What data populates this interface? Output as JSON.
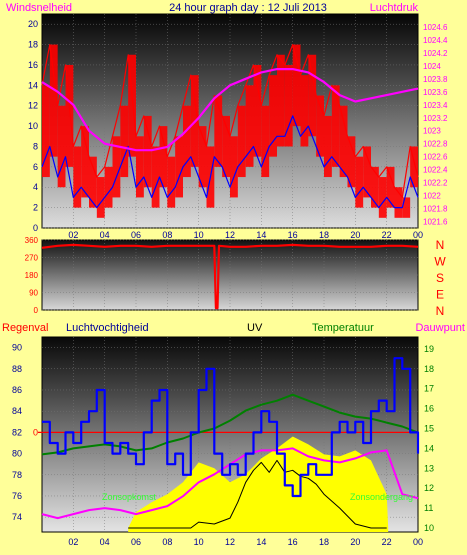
{
  "title": "24 hour graph day : 12 Juli 2013",
  "colors": {
    "background": "#ffff99",
    "wind": "#ff0000",
    "gust": "#0000ff",
    "pressure": "#ff00ff",
    "direction": "#ff0000",
    "rain": "#ff0000",
    "humidity": "#0000ff",
    "uv": "#000000",
    "solar": "#ffff00",
    "temperature": "#008000",
    "dewpoint": "#ff00ff",
    "label_green": "#008000",
    "label_blue": "#000099"
  },
  "chart_data": [
    {
      "type": "line",
      "title": "24 hour graph day : 12 Juli 2013",
      "left_axis_label": "Windsnelheid",
      "right_axis_label": "Luchtdruk",
      "x_ticks": [
        "02",
        "04",
        "06",
        "08",
        "10",
        "12",
        "14",
        "16",
        "18",
        "20",
        "22",
        "00"
      ],
      "left_ylim": [
        0,
        21
      ],
      "left_ticks": [
        "0",
        "2",
        "4",
        "6",
        "8",
        "10",
        "12",
        "14",
        "16",
        "18",
        "20"
      ],
      "right_ylim": [
        1021.5,
        1024.8
      ],
      "right_ticks": [
        "1021.6",
        "1021.8",
        "1022",
        "1022.2",
        "1022.4",
        "1022.6",
        "1022.8",
        "1023",
        "1023.2",
        "1023.4",
        "1023.6",
        "1023.8",
        "1024",
        "1024.2",
        "1024.4",
        "1024.6"
      ],
      "series": [
        {
          "key": "wind",
          "hours": [
            0,
            0.5,
            1,
            1.5,
            2,
            2.5,
            3,
            3.5,
            4,
            4.5,
            5,
            5.5,
            6,
            6.5,
            7,
            7.5,
            8,
            8.5,
            9,
            9.5,
            10,
            10.5,
            11,
            11.5,
            12,
            12.5,
            13,
            13.5,
            14,
            14.5,
            15,
            15.5,
            16,
            16.5,
            17,
            17.5,
            18,
            18.5,
            19,
            19.5,
            20,
            20.5,
            21,
            21.5,
            22,
            22.5,
            23,
            23.5,
            24
          ],
          "values": [
            14,
            18,
            12,
            16,
            8,
            10,
            7,
            5,
            6,
            9,
            12,
            17,
            9,
            11,
            8,
            10,
            7,
            9,
            12,
            15,
            10,
            8,
            13,
            11,
            9,
            12,
            14,
            16,
            12,
            15,
            17,
            16,
            18,
            15,
            17,
            13,
            11,
            14,
            12,
            9,
            7,
            8,
            6,
            5,
            6,
            4,
            3,
            8,
            5
          ]
        },
        {
          "key": "gust",
          "hours": [
            0,
            0.5,
            1,
            1.5,
            2,
            2.5,
            3,
            3.5,
            4,
            4.5,
            5,
            5.5,
            6,
            6.5,
            7,
            7.5,
            8,
            8.5,
            9,
            9.5,
            10,
            10.5,
            11,
            11.5,
            12,
            12.5,
            13,
            13.5,
            14,
            14.5,
            15,
            15.5,
            16,
            16.5,
            17,
            17.5,
            18,
            18.5,
            19,
            19.5,
            20,
            20.5,
            21,
            21.5,
            22,
            22.5,
            23,
            23.5,
            24
          ],
          "values": [
            6,
            8,
            5,
            7,
            3,
            4,
            3,
            2,
            3,
            4,
            6,
            8,
            4,
            5,
            3,
            5,
            3,
            4,
            6,
            7,
            5,
            3,
            7,
            6,
            4,
            6,
            7,
            8,
            6,
            8,
            9,
            9,
            11,
            9,
            10,
            8,
            6,
            7,
            6,
            5,
            3,
            4,
            3,
            2,
            3,
            2,
            2,
            5,
            3
          ]
        },
        {
          "key": "pressure",
          "hours": [
            0,
            1,
            2,
            3,
            4,
            5,
            6,
            7,
            8,
            9,
            10,
            11,
            12,
            13,
            14,
            15,
            16,
            17,
            18,
            19,
            20,
            21,
            22,
            23,
            24
          ],
          "values": [
            1023.75,
            1023.6,
            1023.4,
            1023.0,
            1022.8,
            1022.75,
            1022.7,
            1022.7,
            1022.75,
            1022.95,
            1023.2,
            1023.5,
            1023.7,
            1023.8,
            1023.9,
            1023.95,
            1023.95,
            1023.9,
            1023.75,
            1023.55,
            1023.45,
            1023.5,
            1023.55,
            1023.6,
            1023.65
          ]
        }
      ]
    },
    {
      "type": "line",
      "title": "",
      "x_ticks": [
        "02",
        "04",
        "06",
        "08",
        "10",
        "12",
        "14",
        "16",
        "18",
        "20",
        "22",
        "00"
      ],
      "ylim": [
        0,
        360
      ],
      "left_ticks": [
        "0",
        "90",
        "180",
        "270",
        "360"
      ],
      "right_labels": [
        "N",
        "W",
        "S",
        "E",
        "N"
      ],
      "series": [
        {
          "key": "direction",
          "hours": [
            0,
            1,
            2,
            3,
            4,
            5,
            6,
            7,
            8,
            9,
            10,
            11,
            11.1,
            11.2,
            11.3,
            12,
            13,
            14,
            15,
            16,
            17,
            18,
            19,
            20,
            21,
            22,
            23,
            24
          ],
          "values": [
            320,
            330,
            335,
            330,
            325,
            330,
            330,
            325,
            330,
            330,
            330,
            330,
            10,
            10,
            330,
            325,
            325,
            330,
            330,
            335,
            330,
            330,
            325,
            325,
            325,
            330,
            330,
            325
          ]
        }
      ]
    },
    {
      "type": "line",
      "title": "",
      "labels": {
        "rain": "Regenval",
        "humidity": "Luchtvochtigheid",
        "uv": "UV",
        "temperature": "Temperatuur",
        "dewpoint": "Dauwpunt",
        "sunrise": "Zonsopkomst",
        "sunset": "Zonsondergang"
      },
      "x_ticks": [
        "02",
        "04",
        "06",
        "08",
        "10",
        "12",
        "14",
        "16",
        "18",
        "20",
        "22",
        "00"
      ],
      "left_ylim": [
        72.6,
        91
      ],
      "left_ticks": [
        "74",
        "76",
        "78",
        "80",
        "82",
        "84",
        "86",
        "88",
        "90"
      ],
      "rain_tick": "0",
      "right_ylim": [
        9.8,
        19.6
      ],
      "right_ticks": [
        "10",
        "11",
        "12",
        "13",
        "14",
        "15",
        "16",
        "17",
        "18",
        "19"
      ],
      "series": [
        {
          "key": "humidity",
          "hours": [
            0,
            0.5,
            1,
            1.5,
            2,
            2.5,
            3,
            3.5,
            4,
            4.5,
            5,
            5.5,
            6,
            6.5,
            7,
            7.5,
            8,
            8.5,
            9,
            9.5,
            10,
            10.5,
            11,
            11.5,
            12,
            12.5,
            13,
            13.5,
            14,
            14.5,
            15,
            15.5,
            16,
            16.5,
            17,
            17.5,
            18,
            18.5,
            19,
            19.5,
            20,
            20.5,
            21,
            21.5,
            22,
            22.5,
            23,
            23.5,
            24
          ],
          "values": [
            83,
            81,
            80,
            82,
            81,
            83,
            84,
            86,
            81,
            80,
            81,
            80,
            79,
            82,
            85,
            86,
            79,
            80,
            78,
            82,
            86,
            88,
            80,
            78,
            79,
            78,
            80,
            82,
            84,
            83,
            80,
            77,
            76,
            78,
            79,
            78,
            78,
            82,
            83,
            82,
            83,
            81,
            84,
            85,
            84,
            89,
            88,
            82,
            80
          ]
        },
        {
          "key": "temperature",
          "hours": [
            0,
            1,
            2,
            3,
            4,
            5,
            6,
            7,
            8,
            9,
            10,
            11,
            12,
            13,
            14,
            15,
            16,
            17,
            18,
            19,
            20,
            21,
            22,
            23,
            24
          ],
          "values": [
            13.7,
            13.8,
            14.0,
            14.1,
            14.2,
            14.1,
            13.9,
            14.0,
            14.3,
            14.5,
            14.8,
            15.0,
            15.4,
            15.9,
            16.2,
            16.4,
            16.7,
            16.4,
            16.1,
            15.8,
            15.6,
            15.5,
            15.3,
            15.1,
            14.8
          ]
        },
        {
          "key": "dewpoint",
          "hours": [
            0,
            1,
            2,
            3,
            4,
            5,
            6,
            7,
            8,
            9,
            10,
            11,
            12,
            13,
            14,
            15,
            16,
            17,
            18,
            19,
            20,
            21,
            22,
            23,
            24
          ],
          "values": [
            10.7,
            10.5,
            10.7,
            10.9,
            11.0,
            10.9,
            10.7,
            10.9,
            11.1,
            11.6,
            12.3,
            12.7,
            13.2,
            13.7,
            13.9,
            13.9,
            14.0,
            13.6,
            13.4,
            13.3,
            13.5,
            13.8,
            13.9,
            11.7,
            11.5
          ]
        },
        {
          "key": "solar",
          "hours": [
            5.5,
            6,
            7,
            8,
            9,
            10,
            11,
            12,
            13,
            14,
            15,
            16,
            17,
            18,
            19,
            20,
            21,
            22,
            22.1
          ],
          "values": [
            10.0,
            10.8,
            11.3,
            11.7,
            12.3,
            13.3,
            13.0,
            12.3,
            12.7,
            13.5,
            14.0,
            14.6,
            14.2,
            13.7,
            13.6,
            13.9,
            13.4,
            11.7,
            10.0
          ]
        },
        {
          "key": "uv",
          "hours": [
            5.5,
            8,
            9.5,
            10,
            11,
            12,
            12.5,
            13,
            13.5,
            14,
            14.5,
            15,
            15.5,
            16,
            16.5,
            17,
            17.5,
            18,
            19,
            20,
            21,
            22
          ],
          "values": [
            10.0,
            10.0,
            10.0,
            10.3,
            10.2,
            10.5,
            11.3,
            12.3,
            12.9,
            13.3,
            12.8,
            13.4,
            12.8,
            12.9,
            12.6,
            12.5,
            12.2,
            11.7,
            11.0,
            10.2,
            10.0,
            10.0
          ]
        }
      ]
    }
  ]
}
